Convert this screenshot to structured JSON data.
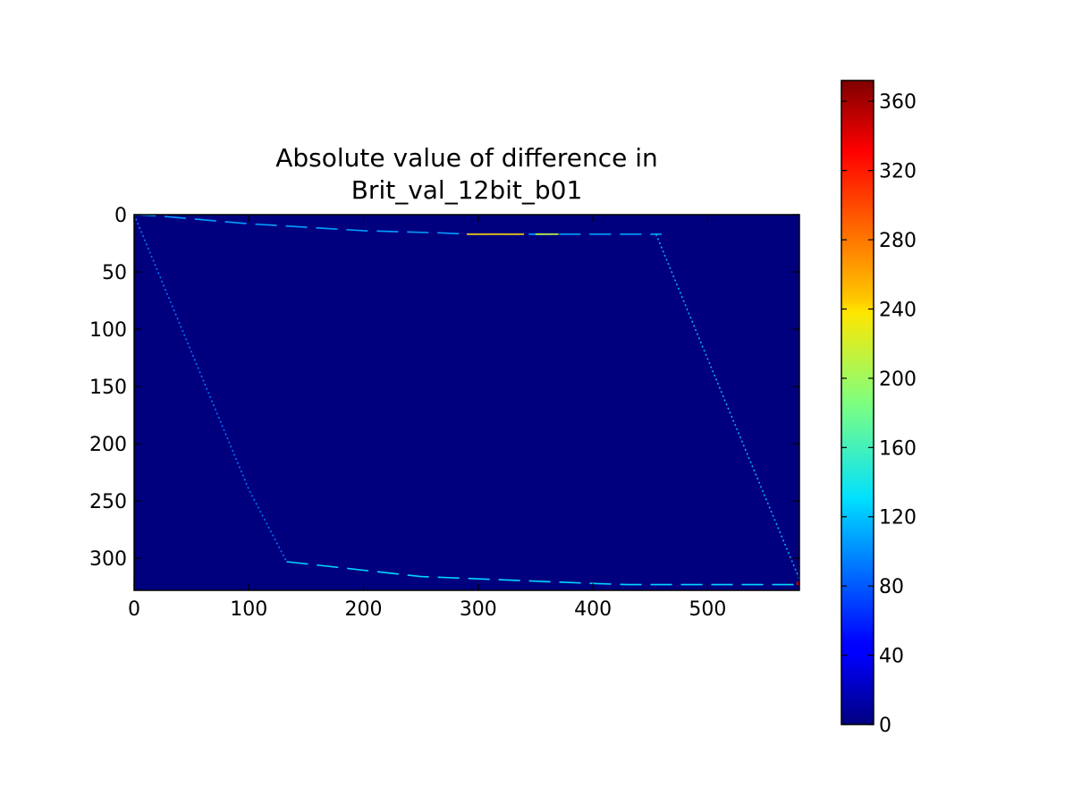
{
  "chart_data": {
    "type": "heatmap",
    "title_lines": [
      "Absolute value of difference in",
      "Brit_val_12bit_b01"
    ],
    "xlabel": "",
    "ylabel": "",
    "x_range": [
      0,
      580
    ],
    "y_range": [
      0,
      328
    ],
    "y_inverted": true,
    "x_ticks": [
      0,
      100,
      200,
      300,
      400,
      500
    ],
    "y_ticks": [
      0,
      50,
      100,
      150,
      200,
      250,
      300
    ],
    "background_value": 0,
    "colormap": "jet",
    "colorbar": {
      "min": 0,
      "max": 372,
      "ticks": [
        0,
        40,
        80,
        120,
        160,
        200,
        240,
        280,
        320,
        360
      ],
      "placement": "right"
    },
    "features": [
      {
        "kind": "dashed",
        "points": [
          [
            0,
            0
          ],
          [
            20,
            1
          ],
          [
            100,
            8
          ],
          [
            200,
            14
          ],
          [
            270,
            16
          ],
          [
            290,
            17
          ],
          [
            460,
            17
          ]
        ],
        "value": 105
      },
      {
        "kind": "solid",
        "points": [
          [
            290,
            17
          ],
          [
            340,
            17
          ]
        ],
        "value": 250
      },
      {
        "kind": "solid",
        "points": [
          [
            350,
            17
          ],
          [
            370,
            17
          ]
        ],
        "value": 210
      },
      {
        "kind": "dotted",
        "points": [
          [
            0,
            0
          ],
          [
            100,
            240
          ],
          [
            133,
            303
          ]
        ],
        "value": 90
      },
      {
        "kind": "dashed",
        "points": [
          [
            133,
            303
          ],
          [
            250,
            316
          ],
          [
            400,
            322
          ],
          [
            430,
            323
          ],
          [
            580,
            323
          ]
        ],
        "value": 125
      },
      {
        "kind": "dotted",
        "points": [
          [
            455,
            17
          ],
          [
            510,
            150
          ],
          [
            580,
            318
          ]
        ],
        "value": 110
      },
      {
        "kind": "point",
        "points": [
          [
            579,
            322
          ]
        ],
        "value": 350
      }
    ]
  }
}
